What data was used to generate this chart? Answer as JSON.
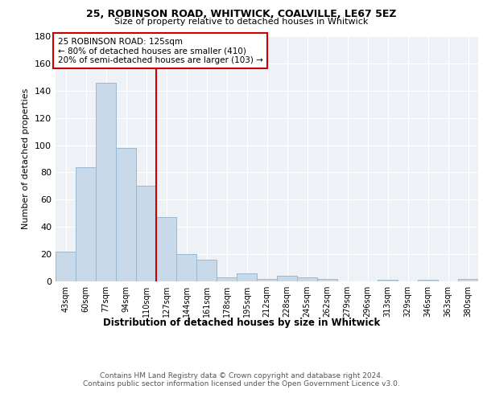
{
  "title1": "25, ROBINSON ROAD, WHITWICK, COALVILLE, LE67 5EZ",
  "title2": "Size of property relative to detached houses in Whitwick",
  "xlabel": "Distribution of detached houses by size in Whitwick",
  "ylabel": "Number of detached properties",
  "bin_labels": [
    "43sqm",
    "60sqm",
    "77sqm",
    "94sqm",
    "110sqm",
    "127sqm",
    "144sqm",
    "161sqm",
    "178sqm",
    "195sqm",
    "212sqm",
    "228sqm",
    "245sqm",
    "262sqm",
    "279sqm",
    "296sqm",
    "313sqm",
    "329sqm",
    "346sqm",
    "363sqm",
    "380sqm"
  ],
  "bar_values": [
    22,
    84,
    146,
    98,
    70,
    47,
    20,
    16,
    3,
    6,
    2,
    4,
    3,
    2,
    0,
    0,
    1,
    0,
    1,
    0,
    2
  ],
  "bar_color": "#c8d9ea",
  "bar_edge_color": "#9ab8d0",
  "property_line_color": "#cc0000",
  "property_line_x": 4.5,
  "annotation_line1": "25 ROBINSON ROAD: 125sqm",
  "annotation_line2": "← 80% of detached houses are smaller (410)",
  "annotation_line3": "20% of semi-detached houses are larger (103) →",
  "annotation_box_color": "#cc0000",
  "ylim": [
    0,
    180
  ],
  "yticks": [
    0,
    20,
    40,
    60,
    80,
    100,
    120,
    140,
    160,
    180
  ],
  "footer": "Contains HM Land Registry data © Crown copyright and database right 2024.\nContains public sector information licensed under the Open Government Licence v3.0.",
  "bg_color": "#eef2f7",
  "grid_color": "#ffffff"
}
